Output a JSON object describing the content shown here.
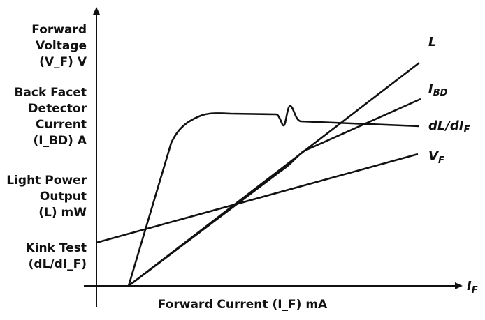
{
  "chart_data": {
    "type": "line",
    "xlabel": "Forward Current (I_F) mA",
    "x_axis_symbol": "I_F",
    "y_labels": [
      {
        "lines": [
          "Forward",
          "Voltage",
          "(V_F) V"
        ]
      },
      {
        "lines": [
          "Back Facet",
          "Detector",
          "Current",
          "(I_BD) A"
        ]
      },
      {
        "lines": [
          "Light Power",
          "Output",
          "(L) mW"
        ]
      },
      {
        "lines": [
          "Kink Test",
          "(dL/dI_F)"
        ]
      }
    ],
    "series": [
      {
        "name": "L",
        "label_text": "L",
        "color": "#111111"
      },
      {
        "name": "I_BD",
        "label_text": "I_BD",
        "color": "#111111"
      },
      {
        "name": "dL/dI_F",
        "label_text": "dL/dI_F",
        "color": "#111111"
      },
      {
        "name": "V_F",
        "label_text": "V_F",
        "color": "#111111"
      }
    ],
    "grid": false
  }
}
